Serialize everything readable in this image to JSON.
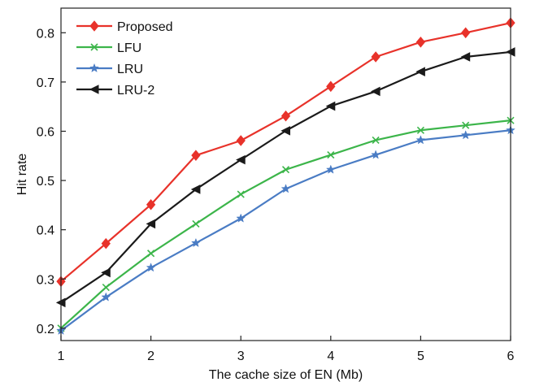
{
  "chart_data": {
    "type": "line",
    "title": "",
    "xlabel": "The cache size of EN (Mb)",
    "ylabel": "Hit rate",
    "xlim": [
      1,
      6
    ],
    "ylim": [
      0.175,
      0.85
    ],
    "xticks": [
      1,
      2,
      3,
      4,
      5,
      6
    ],
    "xtick_labels": [
      "1",
      "2",
      "3",
      "4",
      "5",
      "6"
    ],
    "yticks": [
      0.2,
      0.3,
      0.4,
      0.5,
      0.6,
      0.7,
      0.8
    ],
    "ytick_labels": [
      "0.2",
      "0.3",
      "0.4",
      "0.5",
      "0.6",
      "0.7",
      "0.8"
    ],
    "grid": false,
    "legend_position": "top-left",
    "x": [
      1,
      1.5,
      2,
      2.5,
      3,
      3.5,
      4,
      4.5,
      5,
      5.5,
      6
    ],
    "series": [
      {
        "name": "Proposed",
        "color": "#e8322a",
        "marker": "diamond",
        "values": [
          0.295,
          0.372,
          0.451,
          0.551,
          0.581,
          0.631,
          0.691,
          0.751,
          0.781,
          0.8,
          0.82
        ]
      },
      {
        "name": "LFU",
        "color": "#3cb54a",
        "marker": "x",
        "values": [
          0.2,
          0.283,
          0.352,
          0.412,
          0.472,
          0.522,
          0.552,
          0.582,
          0.602,
          0.612,
          0.622
        ]
      },
      {
        "name": "LRU",
        "color": "#4a7cc4",
        "marker": "star",
        "values": [
          0.195,
          0.263,
          0.323,
          0.373,
          0.423,
          0.483,
          0.522,
          0.552,
          0.582,
          0.592,
          0.602
        ]
      },
      {
        "name": "LRU-2",
        "color": "#1a1a1a",
        "marker": "triangle-left",
        "values": [
          0.252,
          0.313,
          0.412,
          0.482,
          0.542,
          0.601,
          0.651,
          0.681,
          0.721,
          0.751,
          0.761
        ]
      }
    ]
  }
}
